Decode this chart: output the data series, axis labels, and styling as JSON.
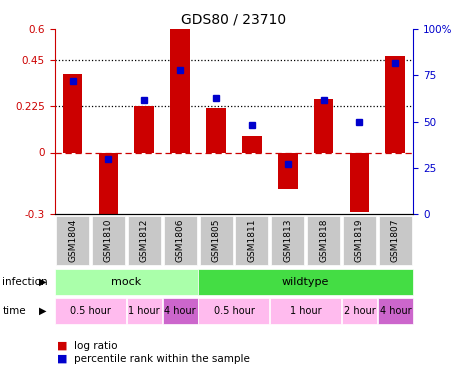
{
  "title": "GDS80 / 23710",
  "samples": [
    "GSM1804",
    "GSM1810",
    "GSM1812",
    "GSM1806",
    "GSM1805",
    "GSM1811",
    "GSM1813",
    "GSM1818",
    "GSM1819",
    "GSM1807"
  ],
  "log_ratio": [
    0.38,
    -0.32,
    0.225,
    0.6,
    0.215,
    0.08,
    -0.18,
    0.26,
    -0.29,
    0.47
  ],
  "percentile": [
    72,
    30,
    62,
    78,
    63,
    48,
    27,
    62,
    50,
    82
  ],
  "ylim_left": [
    -0.3,
    0.6
  ],
  "ylim_right": [
    0,
    100
  ],
  "yticks_left": [
    -0.3,
    0,
    0.225,
    0.45,
    0.6
  ],
  "yticks_right": [
    0,
    25,
    50,
    75,
    100
  ],
  "ytick_left_labels": [
    "-0.3",
    "0",
    "0.225",
    "0.45",
    "0.6"
  ],
  "ytick_right_labels": [
    "0",
    "25",
    "50",
    "75",
    "100%"
  ],
  "hline_dotted": [
    0.45,
    0.225
  ],
  "hline_dashdot": 0.0,
  "bar_color": "#cc0000",
  "dot_color": "#0000cc",
  "infection_groups": [
    {
      "label": "mock",
      "start": 0,
      "end": 4,
      "color": "#aaffaa"
    },
    {
      "label": "wildtype",
      "start": 4,
      "end": 10,
      "color": "#44dd44"
    }
  ],
  "time_groups": [
    {
      "label": "0.5 hour",
      "start": 0,
      "end": 2,
      "color": "#ffbbee"
    },
    {
      "label": "1 hour",
      "start": 2,
      "end": 3,
      "color": "#ffbbee"
    },
    {
      "label": "4 hour",
      "start": 3,
      "end": 4,
      "color": "#cc66cc"
    },
    {
      "label": "0.5 hour",
      "start": 4,
      "end": 6,
      "color": "#ffbbee"
    },
    {
      "label": "1 hour",
      "start": 6,
      "end": 8,
      "color": "#ffbbee"
    },
    {
      "label": "2 hour",
      "start": 8,
      "end": 9,
      "color": "#ffbbee"
    },
    {
      "label": "4 hour",
      "start": 9,
      "end": 10,
      "color": "#cc66cc"
    }
  ],
  "xtick_bg": "#c8c8c8",
  "legend_bar_label": "log ratio",
  "legend_dot_label": "percentile rank within the sample"
}
